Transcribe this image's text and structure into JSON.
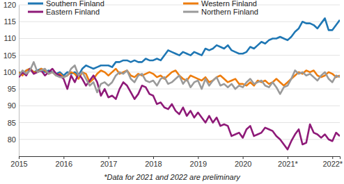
{
  "chart_data": {
    "type": "line",
    "categories": [
      "2015",
      null,
      null,
      null,
      null,
      null,
      null,
      null,
      null,
      null,
      null,
      null,
      "2016",
      null,
      null,
      null,
      null,
      null,
      null,
      null,
      null,
      null,
      null,
      null,
      "2017",
      null,
      null,
      null,
      null,
      null,
      null,
      null,
      null,
      null,
      null,
      null,
      "2018",
      null,
      null,
      null,
      null,
      null,
      null,
      null,
      null,
      null,
      null,
      null,
      "2019",
      null,
      null,
      null,
      null,
      null,
      null,
      null,
      null,
      null,
      null,
      null,
      "2020",
      null,
      null,
      null,
      null,
      null,
      null,
      null,
      null,
      null,
      null,
      null,
      "2021*",
      null,
      null,
      null,
      null,
      null,
      null,
      null,
      null,
      null,
      null,
      null,
      "2022*",
      null,
      null
    ],
    "series": [
      {
        "name": "Southern Finland",
        "color": "#1f77b4",
        "values": [
          100,
          99.5,
          100.5,
          101,
          100,
          100.5,
          101,
          100,
          100.5,
          100,
          99.5,
          100,
          99,
          100,
          99.5,
          100,
          99,
          101,
          102,
          101.5,
          101,
          101.5,
          102,
          102,
          102,
          101.5,
          103,
          103,
          103.5,
          103.5,
          103,
          103.5,
          103,
          103,
          104,
          103.5,
          103.5,
          104,
          103.5,
          105,
          106.5,
          106,
          105.5,
          105,
          106,
          105.5,
          105,
          106,
          105.5,
          105,
          107,
          106.5,
          107,
          108,
          107.5,
          107,
          108,
          106.5,
          106,
          105.5,
          105.5,
          106,
          107.5,
          107,
          108,
          109,
          108.5,
          109.5,
          110,
          110,
          110.5,
          110,
          109.5,
          110.5,
          112,
          113,
          115,
          114.5,
          114.5,
          114,
          113,
          114.5,
          116,
          112.5,
          112.5,
          114,
          115.5
        ]
      },
      {
        "name": "Western Finland",
        "color": "#ee7d0e",
        "values": [
          100,
          99,
          100.5,
          101,
          100,
          100,
          101,
          100.5,
          99.5,
          100,
          99,
          99.5,
          98.5,
          99,
          100,
          99.5,
          98,
          100,
          99.5,
          97,
          98,
          99.5,
          100.5,
          100,
          99,
          100,
          101,
          99.5,
          100,
          100.5,
          99,
          98.5,
          99.5,
          99,
          99.5,
          100,
          99.5,
          98.5,
          99,
          98,
          99,
          100,
          100.5,
          99,
          98,
          97.5,
          99,
          98.5,
          98,
          97.5,
          98.5,
          97,
          97.5,
          98.5,
          99,
          98,
          97,
          97.5,
          98,
          96.5,
          96.5,
          96,
          97,
          96,
          97.5,
          97,
          97.5,
          96.5,
          97,
          98,
          97,
          96,
          97,
          98,
          99,
          100,
          99.5,
          100.5,
          100,
          100.5,
          99,
          98.5,
          99,
          100,
          99.5,
          98.5,
          99
        ]
      },
      {
        "name": "Eastern Finland",
        "color": "#8e1a78",
        "values": [
          98.5,
          100,
          99,
          101,
          99.5,
          100,
          100.5,
          99,
          100,
          101,
          99.5,
          99,
          98,
          95,
          99,
          97,
          99.5,
          98,
          96,
          97.5,
          99,
          97,
          93,
          95,
          92.5,
          93,
          92,
          95,
          97,
          96,
          94,
          92,
          93.5,
          96,
          95.5,
          93.5,
          93,
          90.5,
          91,
          89.5,
          89,
          90.5,
          88.5,
          87.5,
          89.5,
          87,
          88.5,
          86.5,
          88,
          86.5,
          85,
          87,
          85,
          86.5,
          84,
          84.5,
          84,
          81,
          81.5,
          82,
          80.5,
          83,
          84,
          81,
          81.5,
          82,
          83.5,
          83,
          82.5,
          81,
          80,
          78.5,
          77,
          79.5,
          81.5,
          83,
          78.5,
          79,
          84.5,
          82,
          81.5,
          80.5,
          81.5,
          80,
          79.5,
          82,
          81
        ]
      },
      {
        "name": "Northern Finland",
        "color": "#9a9a9a",
        "values": [
          99,
          100.5,
          99.5,
          100.5,
          103,
          100,
          100.5,
          101,
          99.5,
          100,
          99,
          98.5,
          98.5,
          99,
          101,
          102,
          99,
          100,
          98,
          96,
          97,
          94,
          96.5,
          97,
          96,
          97,
          99,
          100,
          99.5,
          100.5,
          98,
          97,
          99,
          99.5,
          97.5,
          97,
          97.5,
          96,
          98,
          98.5,
          96.5,
          97,
          98,
          99,
          96.5,
          98,
          95.5,
          97,
          97.5,
          95,
          98,
          96,
          97.5,
          98.5,
          96,
          96.5,
          95.5,
          96.5,
          95,
          96,
          95.5,
          97,
          98,
          96.5,
          97,
          97.5,
          96,
          95.5,
          97,
          95.5,
          93.5,
          95.5,
          96,
          98,
          100.5,
          99.5,
          100,
          99,
          99.5,
          98.5,
          97.5,
          99,
          100,
          98,
          97,
          99,
          98.5
        ]
      }
    ],
    "ylim": [
      75,
      120
    ],
    "yticks": [
      80,
      85,
      90,
      95,
      100,
      105,
      110,
      115,
      120
    ],
    "grid": true,
    "legend": "top",
    "annotations": [
      "*Data for 2021 and 2022 are preliminary"
    ]
  }
}
